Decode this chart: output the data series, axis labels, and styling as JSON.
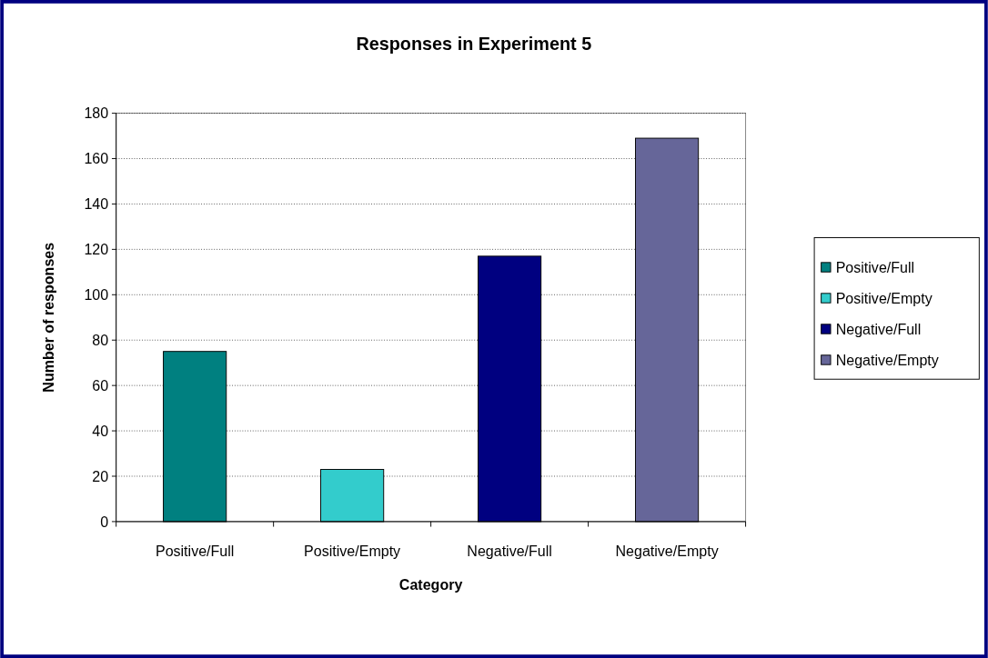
{
  "chart_data": {
    "type": "bar",
    "title": "Responses in Experiment 5",
    "xlabel": "Category",
    "ylabel": "Number of responses",
    "categories": [
      "Positive/Full",
      "Positive/Empty",
      "Negative/Full",
      "Negative/Empty"
    ],
    "series": [
      {
        "name": "Positive/Full",
        "color": "#008080",
        "values": [
          75,
          null,
          null,
          null
        ]
      },
      {
        "name": "Positive/Empty",
        "color": "#33cccc",
        "values": [
          null,
          23,
          null,
          null
        ]
      },
      {
        "name": "Negative/Full",
        "color": "#000080",
        "values": [
          null,
          null,
          117,
          null
        ]
      },
      {
        "name": "Negative/Empty",
        "color": "#666699",
        "values": [
          null,
          null,
          null,
          169
        ]
      }
    ],
    "ylim": [
      0,
      180
    ],
    "yticks": [
      0,
      20,
      40,
      60,
      80,
      100,
      120,
      140,
      160,
      180
    ],
    "grid": "y",
    "legend": "right"
  }
}
